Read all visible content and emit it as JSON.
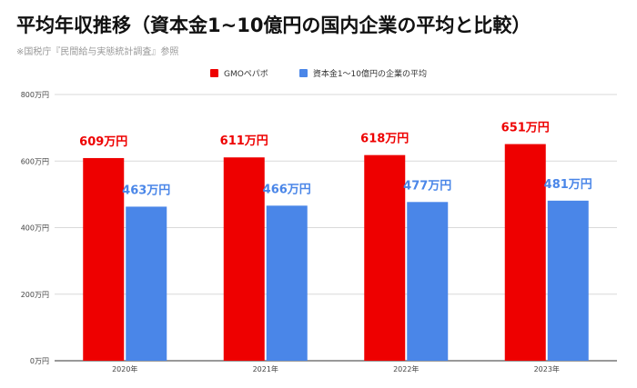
{
  "title": "平均年収推移（資本金1~10億円の国内企業の平均と比較）",
  "source": "※国税庁『民間給与実態統計調査』参照",
  "colors": {
    "series1": "#ee0000",
    "series2": "#4a86e8",
    "label1": "#ee0000",
    "label2": "#4a86e8"
  },
  "chart_data": {
    "type": "bar",
    "categories": [
      "2020年",
      "2021年",
      "2022年",
      "2023年"
    ],
    "series": [
      {
        "name": "GMOペパボ",
        "values": [
          609,
          611,
          618,
          651
        ],
        "labels": [
          "609万円",
          "611万円",
          "618万円",
          "651万円"
        ]
      },
      {
        "name": "資本金1～10億円の企業の平均",
        "values": [
          463,
          466,
          477,
          481
        ],
        "labels": [
          "463万円",
          "466万円",
          "477万円",
          "481万円"
        ]
      }
    ],
    "yticks": [
      {
        "value": 0,
        "label": "0万円"
      },
      {
        "value": 200,
        "label": "200万円"
      },
      {
        "value": 400,
        "label": "400万円"
      },
      {
        "value": 600,
        "label": "600万円"
      },
      {
        "value": 800,
        "label": "800万円"
      }
    ],
    "ylim": [
      0,
      800
    ],
    "grid": true,
    "legend": "top-center"
  }
}
